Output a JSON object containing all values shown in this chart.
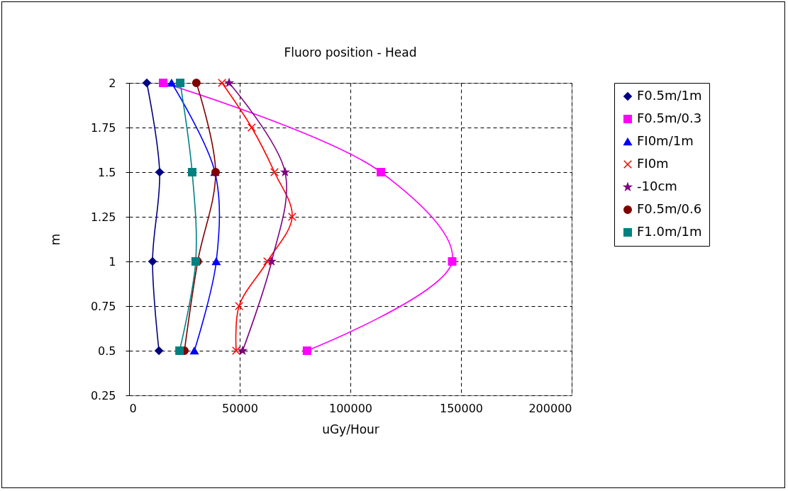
{
  "chart_data": {
    "type": "line",
    "title": "Fluoro position - Head",
    "xlabel": "uGy/Hour",
    "ylabel": "m",
    "xlim": [
      0,
      200000
    ],
    "xticks": [
      0,
      50000,
      100000,
      150000,
      200000
    ],
    "ylim": [
      0.25,
      2
    ],
    "yticks": [
      0.25,
      0.5,
      0.75,
      1,
      1.25,
      1.5,
      1.75,
      2
    ],
    "grid": true,
    "legend": "right",
    "line_style": "solid",
    "series": [
      {
        "name": "F0.5m/1m",
        "color": "#000080",
        "marker": "diamond",
        "x": [
          8000,
          13800,
          10600,
          13500
        ],
        "values": [
          2,
          1.5,
          1,
          0.5
        ]
      },
      {
        "name": "F0.5m/0.3",
        "color": "#ff00ff",
        "marker": "square",
        "x": [
          15400,
          113800,
          146000,
          80400
        ],
        "values": [
          2,
          1.5,
          1,
          0.5
        ]
      },
      {
        "name": "FI0m/1m",
        "color": "#0000ff",
        "marker": "triangle",
        "x": [
          19200,
          38800,
          39400,
          29500
        ],
        "values": [
          2,
          1.5,
          1,
          0.5
        ]
      },
      {
        "name": "FI0m",
        "color": "#ff0000",
        "marker": "cross",
        "x": [
          42000,
          55400,
          65700,
          73700,
          62500,
          49700,
          48400
        ],
        "values": [
          2,
          1.75,
          1.5,
          1.25,
          1,
          0.75,
          0.5
        ]
      },
      {
        "name": "-10cm",
        "color": "#800080",
        "marker": "star",
        "x": [
          45200,
          70500,
          64400,
          51300
        ],
        "values": [
          2,
          1.5,
          1,
          0.5
        ]
      },
      {
        "name": "F0.5m/0.6",
        "color": "#800000",
        "marker": "circle",
        "x": [
          30400,
          39100,
          31000,
          25000
        ],
        "values": [
          2,
          1.5,
          1,
          0.5
        ]
      },
      {
        "name": "F1.0m/1m",
        "color": "#008080",
        "marker": "square",
        "x": [
          23100,
          28500,
          30100,
          22800
        ],
        "values": [
          2,
          1.5,
          1,
          0.5
        ]
      }
    ]
  }
}
